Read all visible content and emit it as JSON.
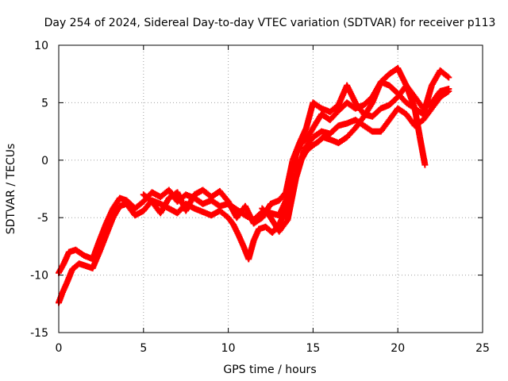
{
  "chart_data": {
    "type": "scatter",
    "title": "Day 254 of 2024, Sidereal Day-to-day VTEC variation (SDTVAR) for receiver p113",
    "xlabel": "GPS time / hours",
    "ylabel": "SDTVAR / TECUs",
    "xlim": [
      0,
      25
    ],
    "ylim": [
      -15,
      10
    ],
    "xticks": [
      "0",
      "5",
      "10",
      "15",
      "20",
      "25"
    ],
    "yticks": [
      "10",
      "5",
      "0",
      "-5",
      "-10",
      "-15"
    ],
    "grid": true,
    "marker": "plus",
    "color": "#ff0000",
    "series": [
      {
        "points": [
          [
            0.0,
            -9.8
          ],
          [
            0.3,
            -9.0
          ],
          [
            0.6,
            -8.0
          ],
          [
            1.0,
            -7.8
          ],
          [
            1.5,
            -8.3
          ],
          [
            2.0,
            -8.6
          ],
          [
            2.4,
            -7.0
          ],
          [
            2.8,
            -5.5
          ],
          [
            3.2,
            -4.2
          ],
          [
            3.6,
            -3.3
          ],
          [
            4.0,
            -3.5
          ],
          [
            4.5,
            -4.2
          ],
          [
            5.0,
            -3.6
          ],
          [
            5.5,
            -2.8
          ],
          [
            6.0,
            -3.2
          ],
          [
            6.5,
            -2.6
          ],
          [
            7.0,
            -3.6
          ],
          [
            7.5,
            -3.0
          ],
          [
            8.0,
            -3.3
          ],
          [
            8.5,
            -3.8
          ],
          [
            9.0,
            -3.5
          ],
          [
            9.5,
            -4.0
          ],
          [
            10.0,
            -3.8
          ],
          [
            10.5,
            -4.3
          ],
          [
            11.0,
            -4.8
          ],
          [
            11.5,
            -5.2
          ],
          [
            12.0,
            -4.5
          ],
          [
            12.5,
            -4.6
          ],
          [
            13.0,
            -4.8
          ],
          [
            13.5,
            -3.2
          ],
          [
            13.8,
            -1.0
          ],
          [
            14.0,
            0.5
          ],
          [
            14.3,
            1.5
          ],
          [
            14.6,
            1.8
          ],
          [
            15.0,
            2.8
          ],
          [
            15.5,
            4.0
          ],
          [
            16.0,
            3.5
          ],
          [
            16.5,
            4.3
          ],
          [
            17.0,
            5.0
          ],
          [
            17.5,
            4.5
          ],
          [
            18.0,
            4.8
          ],
          [
            18.5,
            5.5
          ],
          [
            19.0,
            6.8
          ],
          [
            19.5,
            7.5
          ],
          [
            20.0,
            8.0
          ],
          [
            20.5,
            6.5
          ],
          [
            21.0,
            4.5
          ],
          [
            21.3,
            2.0
          ],
          [
            21.6,
            -0.4
          ]
        ]
      },
      {
        "points": [
          [
            0.0,
            -12.4
          ],
          [
            0.2,
            -11.6
          ],
          [
            0.5,
            -10.6
          ],
          [
            0.8,
            -9.5
          ],
          [
            1.2,
            -9.0
          ],
          [
            1.6,
            -9.2
          ],
          [
            2.0,
            -9.4
          ],
          [
            2.4,
            -8.0
          ],
          [
            2.8,
            -6.5
          ],
          [
            3.2,
            -5.0
          ],
          [
            3.6,
            -4.0
          ],
          [
            4.0,
            -3.8
          ],
          [
            4.5,
            -4.8
          ],
          [
            5.0,
            -4.4
          ],
          [
            5.5,
            -3.5
          ],
          [
            6.0,
            -3.8
          ],
          [
            6.5,
            -4.2
          ],
          [
            7.0,
            -4.6
          ],
          [
            7.5,
            -3.8
          ],
          [
            8.0,
            -4.2
          ],
          [
            8.5,
            -4.5
          ],
          [
            9.0,
            -4.8
          ],
          [
            9.5,
            -4.4
          ],
          [
            10.0,
            -5.0
          ],
          [
            10.3,
            -5.6
          ],
          [
            10.6,
            -6.5
          ],
          [
            10.9,
            -7.5
          ],
          [
            11.2,
            -8.6
          ],
          [
            11.5,
            -7.0
          ],
          [
            11.8,
            -6.0
          ],
          [
            12.2,
            -5.8
          ],
          [
            12.6,
            -6.3
          ],
          [
            13.0,
            -5.6
          ],
          [
            13.5,
            -4.0
          ],
          [
            13.8,
            -2.5
          ],
          [
            14.0,
            -1.5
          ],
          [
            14.3,
            0.0
          ],
          [
            14.6,
            0.8
          ],
          [
            15.0,
            1.3
          ],
          [
            15.3,
            1.6
          ],
          [
            15.6,
            2.0
          ],
          [
            16.0,
            1.8
          ],
          [
            16.5,
            1.5
          ],
          [
            17.0,
            2.0
          ],
          [
            17.5,
            2.8
          ],
          [
            18.0,
            3.8
          ],
          [
            18.5,
            5.0
          ],
          [
            19.0,
            6.8
          ],
          [
            19.5,
            6.5
          ],
          [
            20.0,
            5.8
          ],
          [
            20.5,
            5.0
          ],
          [
            21.0,
            4.5
          ],
          [
            21.5,
            4.0
          ],
          [
            22.0,
            6.5
          ],
          [
            22.5,
            7.8
          ],
          [
            23.0,
            7.2
          ]
        ]
      },
      {
        "points": [
          [
            12.0,
            -4.2
          ],
          [
            12.5,
            -5.0
          ],
          [
            13.0,
            -6.2
          ],
          [
            13.5,
            -5.2
          ],
          [
            14.0,
            -1.5
          ],
          [
            14.5,
            1.0
          ],
          [
            15.0,
            2.0
          ],
          [
            15.5,
            2.5
          ],
          [
            16.0,
            2.3
          ],
          [
            16.5,
            3.0
          ],
          [
            17.0,
            3.2
          ],
          [
            17.5,
            3.5
          ],
          [
            18.0,
            3.0
          ],
          [
            18.5,
            2.5
          ],
          [
            19.0,
            2.5
          ],
          [
            19.5,
            3.5
          ],
          [
            20.0,
            4.5
          ],
          [
            20.5,
            4.0
          ],
          [
            21.0,
            3.0
          ],
          [
            21.5,
            3.5
          ],
          [
            22.0,
            4.5
          ],
          [
            22.5,
            5.5
          ],
          [
            23.0,
            6.0
          ]
        ]
      },
      {
        "points": [
          [
            5.0,
            -3.0
          ],
          [
            5.5,
            -3.6
          ],
          [
            6.0,
            -4.6
          ],
          [
            6.5,
            -3.3
          ],
          [
            7.0,
            -2.8
          ],
          [
            7.5,
            -4.4
          ],
          [
            8.0,
            -3.0
          ],
          [
            8.5,
            -2.6
          ],
          [
            9.0,
            -3.2
          ],
          [
            9.5,
            -2.7
          ],
          [
            10.0,
            -3.6
          ],
          [
            10.5,
            -5.0
          ],
          [
            11.0,
            -4.0
          ],
          [
            11.5,
            -5.5
          ],
          [
            12.0,
            -5.0
          ],
          [
            12.5,
            -3.8
          ],
          [
            13.0,
            -3.5
          ],
          [
            13.4,
            -2.8
          ],
          [
            13.8,
            0.0
          ],
          [
            14.2,
            1.5
          ],
          [
            14.6,
            2.8
          ],
          [
            15.0,
            5.0
          ],
          [
            15.5,
            4.5
          ],
          [
            16.0,
            4.2
          ],
          [
            16.5,
            4.8
          ],
          [
            17.0,
            6.5
          ],
          [
            17.5,
            5.0
          ],
          [
            18.0,
            4.0
          ],
          [
            18.5,
            3.8
          ],
          [
            19.0,
            4.5
          ],
          [
            19.5,
            4.8
          ],
          [
            20.0,
            5.5
          ],
          [
            20.5,
            6.5
          ],
          [
            21.0,
            5.5
          ],
          [
            21.5,
            4.5
          ],
          [
            22.0,
            5.0
          ],
          [
            22.5,
            6.0
          ],
          [
            23.0,
            6.2
          ]
        ]
      }
    ]
  }
}
